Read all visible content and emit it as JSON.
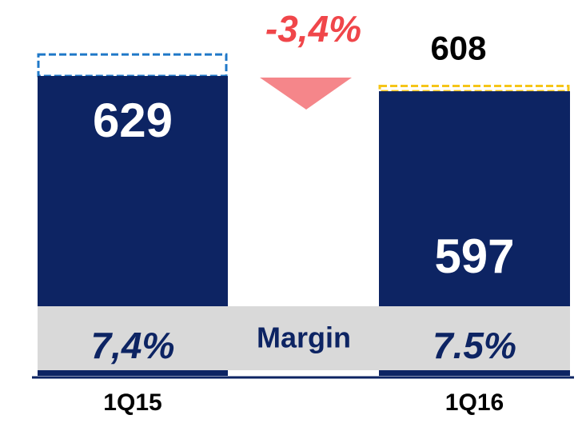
{
  "chart_data": {
    "type": "bar",
    "categories": [
      "1Q15",
      "1Q16"
    ],
    "values": [
      629,
      597
    ],
    "color": "#0d2463",
    "dashed_values": [
      674,
      608
    ],
    "dashed_labels": [
      null,
      "608"
    ],
    "dashed_colors": [
      "#1f78c8",
      "#f5c518"
    ],
    "margin_title": "Margin",
    "margins": [
      "7,4%",
      "7.5%"
    ],
    "change_label": "-3,4%",
    "change_color": "#f0464a"
  }
}
